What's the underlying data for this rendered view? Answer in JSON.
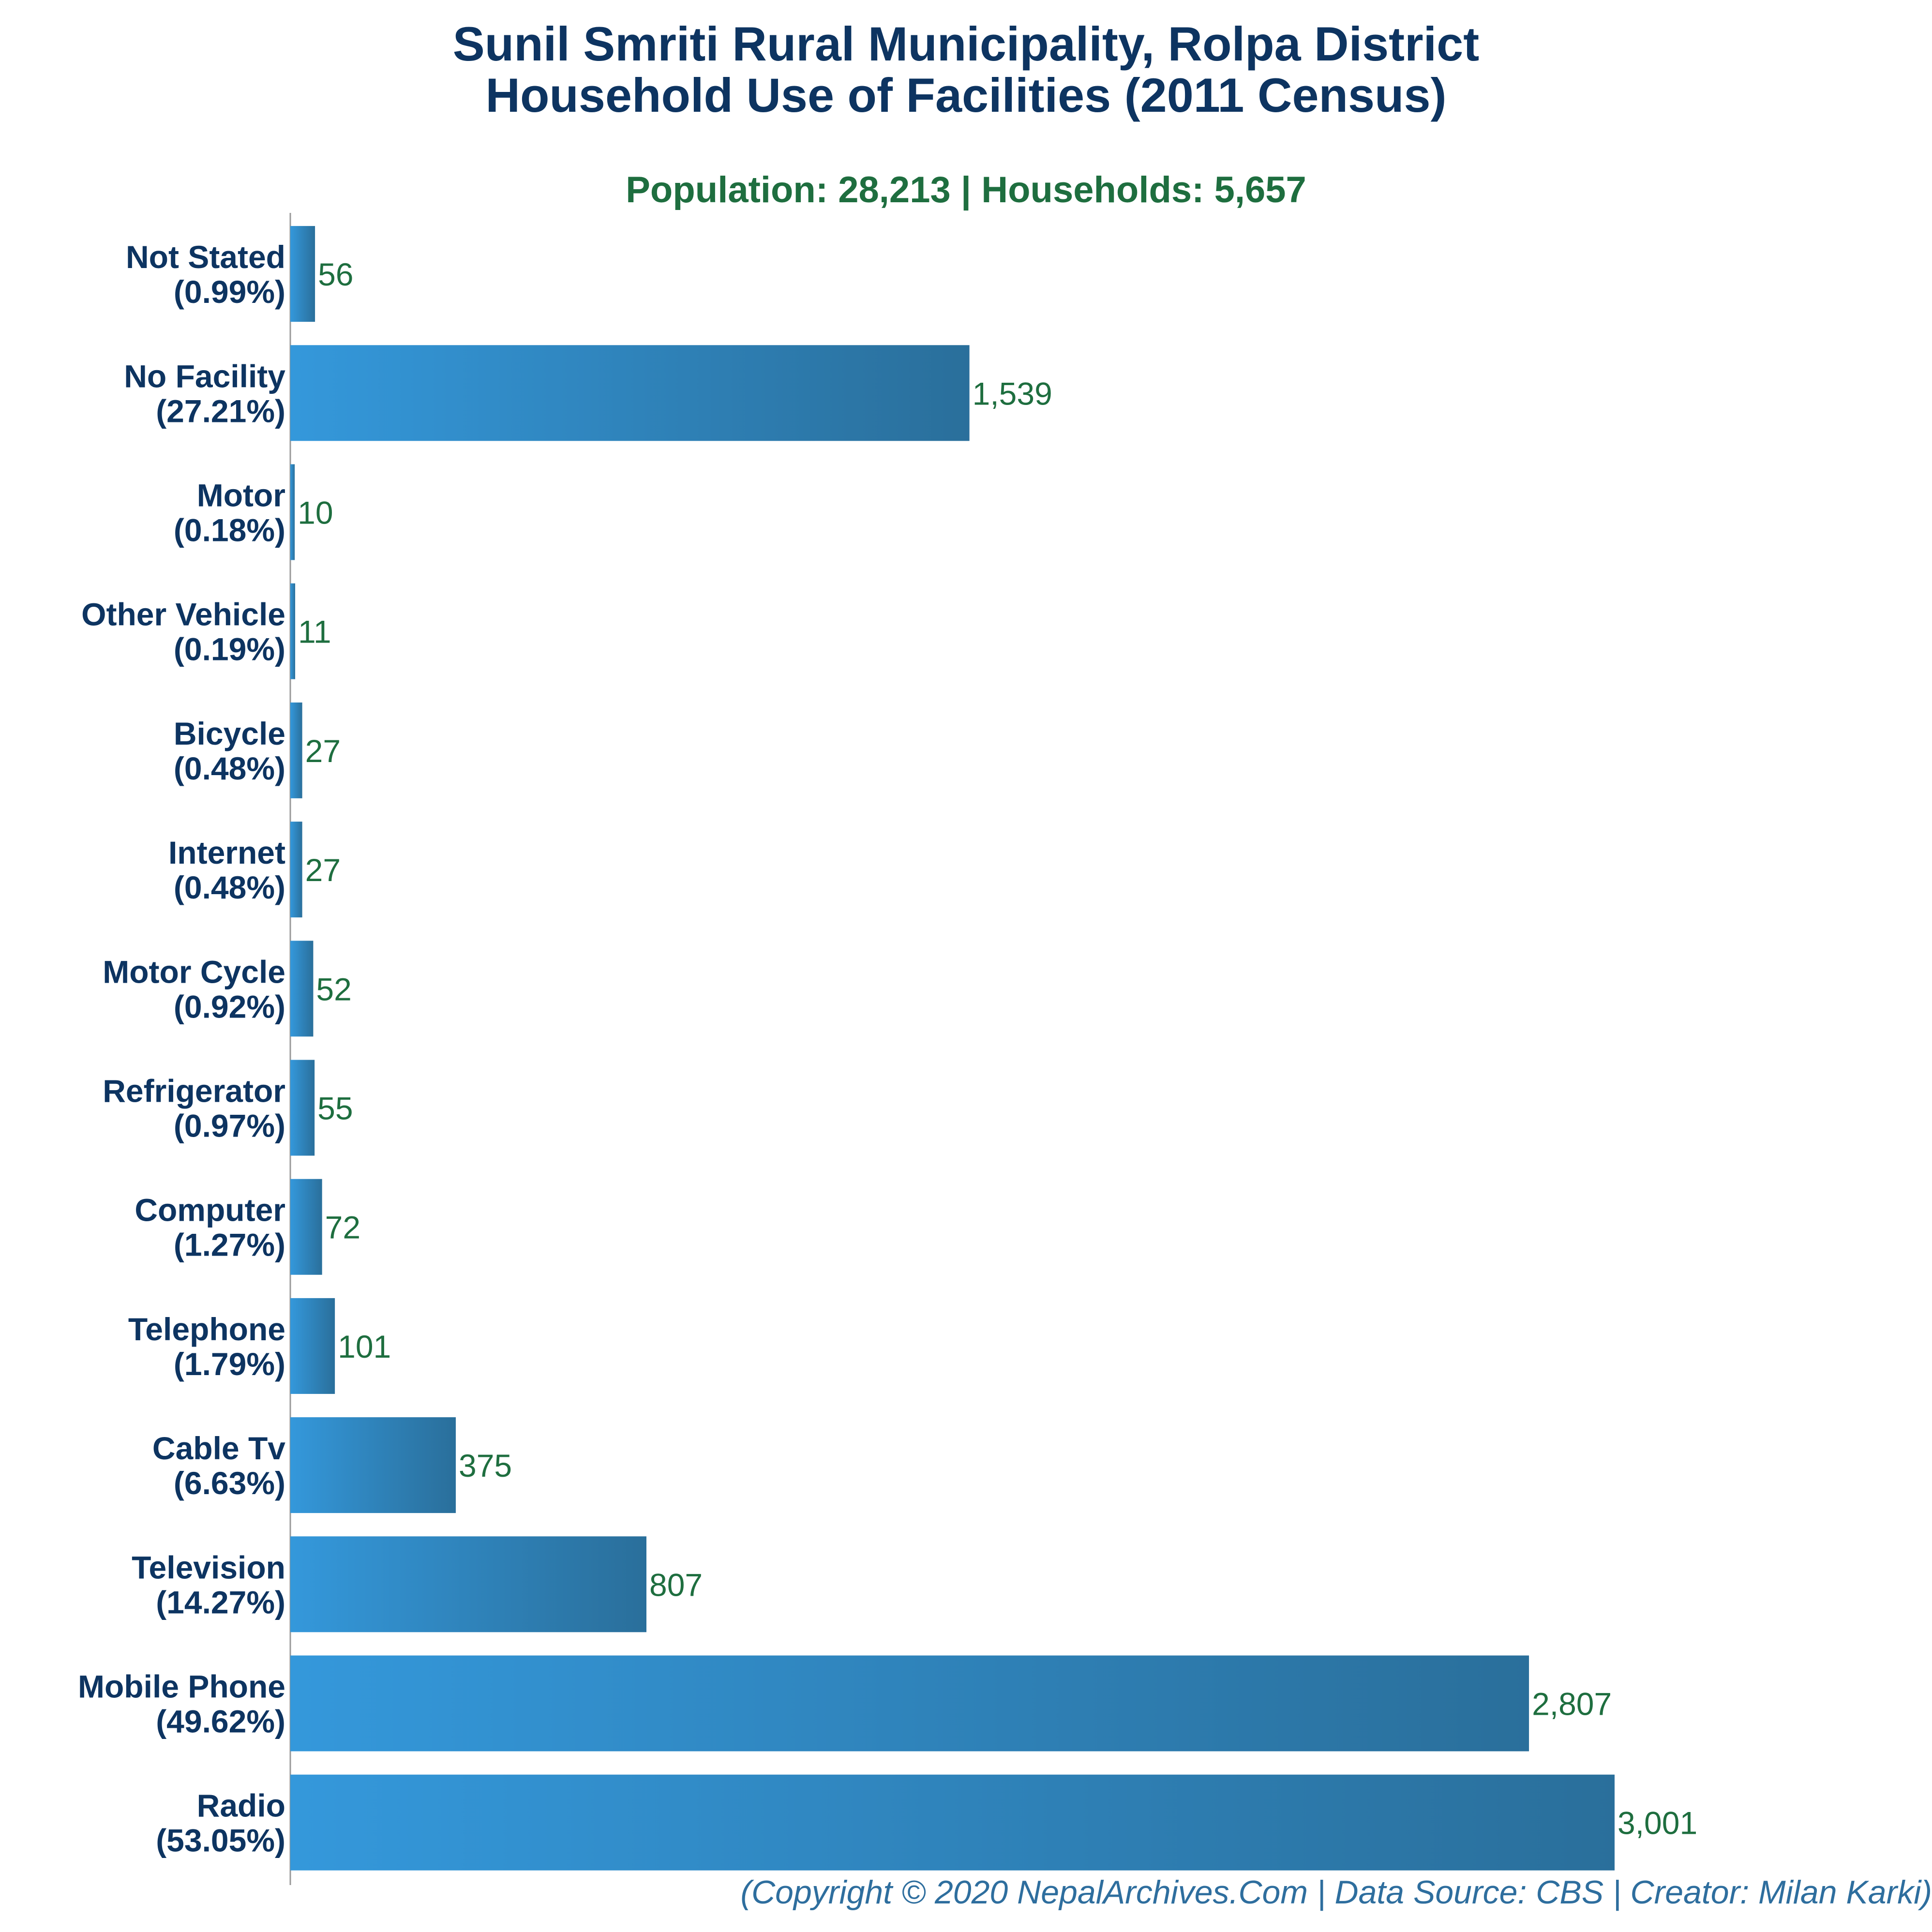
{
  "title_line1": "Sunil Smriti Rural Municipality, Rolpa District",
  "title_line2": "Household Use of Facilities (2011 Census)",
  "subtitle": "Population: 28,213 | Households: 5,657",
  "footer": "(Copyright © 2020 NepalArchives.Com | Data Source: CBS | Creator: Milan Karki)",
  "colors": {
    "bar_light": "#3498db",
    "bar_dark": "#2a6f9b",
    "label": "#0d3461",
    "value": "#1e6e3f",
    "axis": "#999999"
  },
  "chart_data": {
    "type": "bar",
    "orientation": "horizontal",
    "title": "Sunil Smriti Rural Municipality, Rolpa District Household Use of Facilities (2011 Census)",
    "xlim": [
      0,
      3001
    ],
    "grid": false,
    "categories": [
      "Not Stated",
      "No Facility",
      "Motor",
      "Other Vehicle",
      "Bicycle",
      "Internet",
      "Motor Cycle",
      "Refrigerator",
      "Computer",
      "Telephone",
      "Cable Tv",
      "Television",
      "Mobile Phone",
      "Radio"
    ],
    "percent_labels": [
      "(0.99%)",
      "(27.21%)",
      "(0.18%)",
      "(0.19%)",
      "(0.48%)",
      "(0.48%)",
      "(0.92%)",
      "(0.97%)",
      "(1.27%)",
      "(1.79%)",
      "(6.63%)",
      "(14.27%)",
      "(49.62%)",
      "(53.05%)"
    ],
    "values": [
      56,
      1539,
      10,
      11,
      27,
      27,
      52,
      55,
      72,
      101,
      375,
      807,
      2807,
      3001
    ],
    "value_labels": [
      "56",
      "1,539",
      "10",
      "11",
      "27",
      "27",
      "52",
      "55",
      "72",
      "101",
      "375",
      "807",
      "2,807",
      "3,001"
    ]
  }
}
